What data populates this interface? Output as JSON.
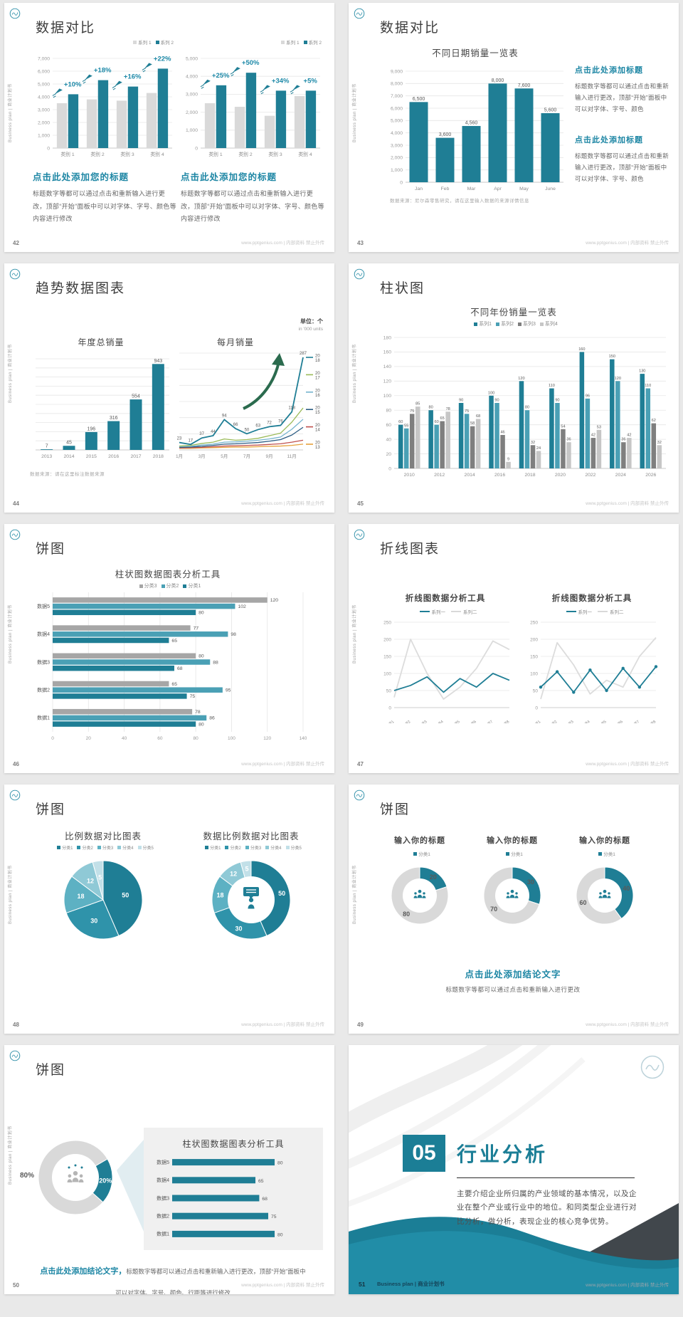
{
  "page": {
    "footer_url": "www.pptgenius.com | 内部资料 禁止外传",
    "sidebar_text": "Business plan | 商业计划书",
    "accent_teal": "#1f7e95",
    "heading_teal": "#1d86a4"
  },
  "slides": {
    "s42": {
      "number": "42",
      "title": "数据对比",
      "legend": [
        {
          "label": "系列 1",
          "color": "#d9d9d9"
        },
        {
          "label": "系列 2",
          "color": "#1f7e95"
        }
      ],
      "block_heading": "点击此处添加您的标题",
      "block_body": "标题数字等都可以通过点击和重新输入进行更改，顶部“开始”面板中可以对字体、字号、颜色等内容进行修改",
      "chart_a": {
        "type": "bar",
        "ymax": 7000,
        "ystep": 1000,
        "comma": true,
        "categories": [
          "类别 1",
          "类别 2",
          "类别 3",
          "类别 4"
        ],
        "series": [
          {
            "name": "系列 1",
            "color": "#d9d9d9",
            "values": [
              3500,
              3800,
              3700,
              4300
            ]
          },
          {
            "name": "系列 2",
            "color": "#1f7e95",
            "values": [
              4200,
              5300,
              4800,
              6200
            ]
          }
        ],
        "ann": [
          "+10%",
          "+18%",
          "+16%",
          "+22%"
        ]
      },
      "chart_b": {
        "type": "bar",
        "ymax": 5000,
        "ystep": 1000,
        "comma": true,
        "categories": [
          "类别 1",
          "类别 2",
          "类别 3",
          "类别 4"
        ],
        "series": [
          {
            "name": "系列 1",
            "color": "#d9d9d9",
            "values": [
              2500,
              2300,
              1800,
              2900
            ]
          },
          {
            "name": "系列 2",
            "color": "#1f7e95",
            "values": [
              3500,
              4200,
              3200,
              3200
            ]
          }
        ],
        "ann": [
          "+25%",
          "+50%",
          "+34%",
          "+5%"
        ]
      }
    },
    "s43": {
      "number": "43",
      "title": "数据对比",
      "chart_title": "不同日期销量一览表",
      "chart": {
        "type": "bar",
        "ymax": 9000,
        "ystep": 1000,
        "comma": true,
        "vlabels": true,
        "vfs": 7,
        "maxbw": 26,
        "categories": [
          "Jan",
          "Feb",
          "Mar",
          "Apr",
          "May",
          "June"
        ],
        "series": [
          {
            "name": "销量",
            "color": "#1f7e95",
            "values": [
              6500,
              3600,
              4560,
              8000,
              7600,
              5600
            ]
          }
        ]
      },
      "note": "数据来源：尼尔森零售研究，请在这里输入数据的来源详情信息",
      "blocks": [
        {
          "heading": "点击此处添加标题",
          "body": "标题数字等都可以通过点击和重新输入进行更改，顶部“开始”面板中可以对字体、字号、颜色"
        },
        {
          "heading": "点击此处添加标题",
          "body": "标题数字等都可以通过点击和重新输入进行更改，顶部“开始”面板中可以对字体、字号、颜色"
        }
      ]
    },
    "s44": {
      "number": "44",
      "title": "趋势数据图表",
      "unit_cn": "单位：个",
      "unit_en": "in '000 units",
      "left_title": "年度总销量",
      "left_chart": {
        "type": "bar",
        "ymax": 1000,
        "ystep": 100,
        "ylabels": false,
        "vlabels": true,
        "vfs": 7,
        "maxbw": 17,
        "categories": [
          "2013",
          "2014",
          "2015",
          "2016",
          "2017",
          "2018"
        ],
        "series": [
          {
            "name": "年度总销量",
            "color": "#1f7e95",
            "values": [
              7,
              45,
              196,
              316,
              554,
              943
            ]
          }
        ]
      },
      "right_title": "每月销量",
      "right_chart": {
        "type": "line",
        "ymax": 300,
        "ystep": 50,
        "ylabels": false,
        "label_series": 0,
        "x": [
          "1月",
          "",
          "3月",
          "",
          "5月",
          "",
          "7月",
          "",
          "9月",
          "",
          "11月",
          ""
        ],
        "series": [
          {
            "name": "2018",
            "color": "#1f7e95",
            "w": 1.8,
            "values": [
              23,
              17,
              37,
              44,
              94,
              66,
              50,
              63,
              72,
              76,
              118,
              287
            ]
          },
          {
            "name": "2017",
            "color": "#9bbb59",
            "w": 1.3,
            "values": [
              12,
              14,
              20,
              24,
              34,
              30,
              32,
              36,
              44,
              52,
              86,
              130
            ]
          },
          {
            "name": "2016",
            "color": "#74b3ce",
            "w": 1.3,
            "values": [
              10,
              11,
              15,
              18,
              24,
              25,
              27,
              30,
              34,
              40,
              64,
              95
            ]
          },
          {
            "name": "2015",
            "color": "#2c5d84",
            "w": 1.3,
            "values": [
              8,
              9,
              11,
              14,
              18,
              19,
              21,
              23,
              27,
              32,
              46,
              70
            ]
          },
          {
            "name": "2014",
            "color": "#c0504d",
            "w": 1.3,
            "values": [
              6,
              7,
              8,
              10,
              12,
              13,
              14,
              15,
              17,
              19,
              24,
              30
            ]
          },
          {
            "name": "2013",
            "color": "#e6a23c",
            "w": 1.3,
            "values": [
              5,
              5,
              6,
              7,
              8,
              9,
              9,
              10,
              11,
              12,
              14,
              18
            ]
          }
        ],
        "legend": [
          {
            "color": "#1f7e95",
            "lines": [
              "20",
              "18"
            ]
          },
          {
            "color": "#9bbb59",
            "lines": [
              "20",
              "17"
            ]
          },
          {
            "color": "#74b3ce",
            "lines": [
              "20",
              "16"
            ]
          },
          {
            "color": "#2c5d84",
            "lines": [
              "20",
              "15"
            ]
          },
          {
            "color": "#c0504d",
            "lines": [
              "20",
              "14"
            ]
          },
          {
            "color": "#e6a23c",
            "lines": [
              "20",
              "13"
            ]
          }
        ]
      },
      "note": "数据来源：请在这里标注数据来源"
    },
    "s45": {
      "number": "45",
      "title": "柱状图",
      "chart_title": "不同年份销量一览表",
      "legend": [
        {
          "label": "系列1",
          "color": "#1f7e95"
        },
        {
          "label": "系列2",
          "color": "#4aa0b5"
        },
        {
          "label": "系列3",
          "color": "#7f7f7f"
        },
        {
          "label": "系列4",
          "color": "#c6c6c6"
        }
      ],
      "chart": {
        "type": "bar",
        "ymax": 180,
        "ystep": 20,
        "vlabels": true,
        "vfs": 5.6,
        "maxbw": 7,
        "tpad": 12,
        "categories": [
          "2010",
          "2012",
          "2014",
          "2016",
          "2018",
          "2020",
          "2022",
          "2024",
          "2026"
        ],
        "series": [
          {
            "name": "系列1",
            "color": "#1f7e95",
            "values": [
              60,
              80,
              90,
              100,
              120,
              110,
              160,
              150,
              130
            ]
          },
          {
            "name": "系列2",
            "color": "#4aa0b5",
            "values": [
              55,
              60,
              75,
              90,
              80,
              90,
              96,
              120,
              110
            ]
          },
          {
            "name": "系列3",
            "color": "#7f7f7f",
            "values": [
              75,
              65,
              58,
              46,
              32,
              54,
              42,
              36,
              62
            ]
          },
          {
            "name": "系列4",
            "color": "#c6c6c6",
            "values": [
              85,
              78,
              68,
              9,
              24,
              36,
              53,
              42,
              32
            ]
          }
        ]
      }
    },
    "s46": {
      "number": "46",
      "title": "饼图",
      "chart_title": "柱状图数据图表分析工具",
      "legend": [
        {
          "label": "分类3",
          "color": "#a6a6a6"
        },
        {
          "label": "分类2",
          "color": "#4aa0b5"
        },
        {
          "label": "分类1",
          "color": "#1f7e95"
        }
      ],
      "chart": {
        "type": "hbar",
        "xmax": 140,
        "xstep": 20,
        "axis": true,
        "bh": 7.5,
        "series": [
          {
            "name": "分类3",
            "color": "#a6a6a6"
          },
          {
            "name": "分类2",
            "color": "#4aa0b5"
          },
          {
            "name": "分类1",
            "color": "#1f7e95"
          }
        ],
        "rows": [
          {
            "label": "数据5",
            "values": [
              120,
              102,
              80
            ]
          },
          {
            "label": "数据4",
            "values": [
              77,
              98,
              65
            ]
          },
          {
            "label": "数据3",
            "values": [
              80,
              88,
              68
            ]
          },
          {
            "label": "数据2",
            "values": [
              65,
              95,
              75
            ]
          },
          {
            "label": "数据1",
            "values": [
              78,
              86,
              80
            ]
          }
        ]
      }
    },
    "s47": {
      "number": "47",
      "title": "折线图表",
      "charts": [
        {
          "title": "折线图数据分析工具",
          "legend": [
            {
              "label": "系列一",
              "color": "#1f7e95"
            },
            {
              "label": "系列二",
              "color": "#d9d9d9"
            }
          ],
          "cfg": {
            "type": "line",
            "ymax": 250,
            "ystep": 50,
            "xrot": true,
            "x": [
              "数据1",
              "数据2",
              "数据3",
              "数据4",
              "数据5",
              "数据6",
              "数据7",
              "数据8"
            ],
            "series": [
              {
                "name": "系列一",
                "color": "#1f7e95",
                "w": 1.8,
                "values": [
                  50,
                  65,
                  90,
                  45,
                  85,
                  60,
                  100,
                  80
                ]
              },
              {
                "name": "系列二",
                "color": "#dcdcdc",
                "w": 1.8,
                "values": [
                  30,
                  200,
                  100,
                  25,
                  60,
                  115,
                  195,
                  170
                ]
              }
            ]
          }
        },
        {
          "title": "折线图数据分析工具",
          "legend": [
            {
              "label": "系列一",
              "color": "#1f7e95"
            },
            {
              "label": "系列二",
              "color": "#d9d9d9"
            }
          ],
          "cfg": {
            "type": "line",
            "ymax": 250,
            "ystep": 50,
            "xrot": true,
            "x": [
              "数据1",
              "数据2",
              "数据3",
              "数据4",
              "数据5",
              "数据6",
              "数据7",
              "数据8"
            ],
            "series": [
              {
                "name": "系列一",
                "color": "#1f7e95",
                "w": 1.8,
                "marker": true,
                "values": [
                  60,
                  105,
                  45,
                  110,
                  50,
                  115,
                  60,
                  120
                ]
              },
              {
                "name": "系列二",
                "color": "#dcdcdc",
                "w": 1.8,
                "values": [
                  25,
                  190,
                  125,
                  40,
                  80,
                  60,
                  150,
                  205
                ]
              }
            ]
          }
        }
      ]
    },
    "s48": {
      "number": "48",
      "title": "饼图",
      "legend": [
        {
          "label": "分类1",
          "color": "#1f7e95"
        },
        {
          "label": "分类2",
          "color": "#2f93aa"
        },
        {
          "label": "分类3",
          "color": "#5db1c3"
        },
        {
          "label": "分类4",
          "color": "#8fc9d6"
        },
        {
          "label": "分类5",
          "color": "#c2e0e8"
        }
      ],
      "left": {
        "title": "比例数据对比图表",
        "chart": {
          "type": "pie",
          "r": 55,
          "colors": [
            "#1f7e95",
            "#2f93aa",
            "#5db1c3",
            "#8fc9d6",
            "#c2e0e8"
          ],
          "values": [
            50,
            30,
            18,
            12,
            5
          ],
          "labels": [
            "50",
            "30",
            "18",
            "12",
            "5"
          ]
        }
      },
      "right": {
        "title": "数据比例数据对比图表",
        "chart": {
          "type": "pie",
          "donut": true,
          "r": 55,
          "ir": 33,
          "icon": "person-speech",
          "colors": [
            "#1f7e95",
            "#2f93aa",
            "#5db1c3",
            "#8fc9d6",
            "#c2e0e8"
          ],
          "values": [
            50,
            30,
            18,
            12,
            5
          ],
          "labels": [
            "50",
            "30",
            "18",
            "12",
            "5"
          ]
        }
      }
    },
    "s49": {
      "number": "49",
      "title": "饼图",
      "items": [
        {
          "heading": "输入你的标题",
          "legend": "分类1",
          "chart": {
            "type": "pie",
            "donut": true,
            "r": 40,
            "ir": 24,
            "icon": "people",
            "label_color": "#595959",
            "colors": [
              "#1f7e95",
              "#d9d9d9"
            ],
            "values": [
              20,
              80
            ],
            "labels": [
              "20",
              "80"
            ]
          }
        },
        {
          "heading": "输入你的标题",
          "legend": "分类1",
          "chart": {
            "type": "pie",
            "donut": true,
            "r": 40,
            "ir": 24,
            "icon": "people",
            "label_color": "#595959",
            "colors": [
              "#1f7e95",
              "#d9d9d9"
            ],
            "values": [
              30,
              70
            ],
            "labels": [
              "30",
              "70"
            ]
          }
        },
        {
          "heading": "输入你的标题",
          "legend": "分类1",
          "chart": {
            "type": "pie",
            "donut": true,
            "r": 40,
            "ir": 24,
            "icon": "people",
            "label_color": "#595959",
            "colors": [
              "#1f7e95",
              "#d9d9d9"
            ],
            "values": [
              40,
              60
            ],
            "labels": [
              "40",
              "60"
            ]
          }
        }
      ],
      "conclusion_heading": "点击此处添加结论文字",
      "conclusion_body": "标题数字等都可以通过点击和重新输入进行更改"
    },
    "s50": {
      "number": "50",
      "title": "饼图",
      "chart": {
        "type": "pie",
        "donut": true,
        "r": 52,
        "ir": 33,
        "start": -30,
        "icon": "people-gray",
        "colors": [
          "#1f7e95",
          "#d9d9d9"
        ],
        "values": [
          20,
          80
        ],
        "labels": [
          "20%",
          ""
        ],
        "label_color": "#ffffff"
      },
      "outside_label": "80%",
      "panel_title": "柱状图数据图表分析工具",
      "panel_chart": {
        "type": "hbar",
        "xmax": 100,
        "axis": false,
        "bh": 9,
        "lpad": 32,
        "series": [
          {
            "name": "数据",
            "color": "#1f7e95"
          }
        ],
        "rows": [
          {
            "label": "数据5",
            "values": [
              80
            ]
          },
          {
            "label": "数据4",
            "values": [
              65
            ]
          },
          {
            "label": "数据3",
            "values": [
              68
            ]
          },
          {
            "label": "数据2",
            "values": [
              75
            ]
          },
          {
            "label": "数据1",
            "values": [
              80
            ]
          }
        ]
      },
      "conclusion_teal": "点击此处添加结论文字，",
      "conclusion_gray": "标题数字等都可以通过点击和重新输入进行更改，顶部“开始”面板中可以对字体、字号、颜色、行距等进行修改"
    },
    "s51": {
      "number": "51",
      "section_number": "05",
      "section_title": "行业分析",
      "body": "主要介绍企业所归属的产业领域的基本情况，以及企业在整个产业或行业中的地位。和同类型企业进行对比分析，做分析，表现企业的核心竞争优势。",
      "footer_label": "Business plan | 商业计划书"
    }
  }
}
